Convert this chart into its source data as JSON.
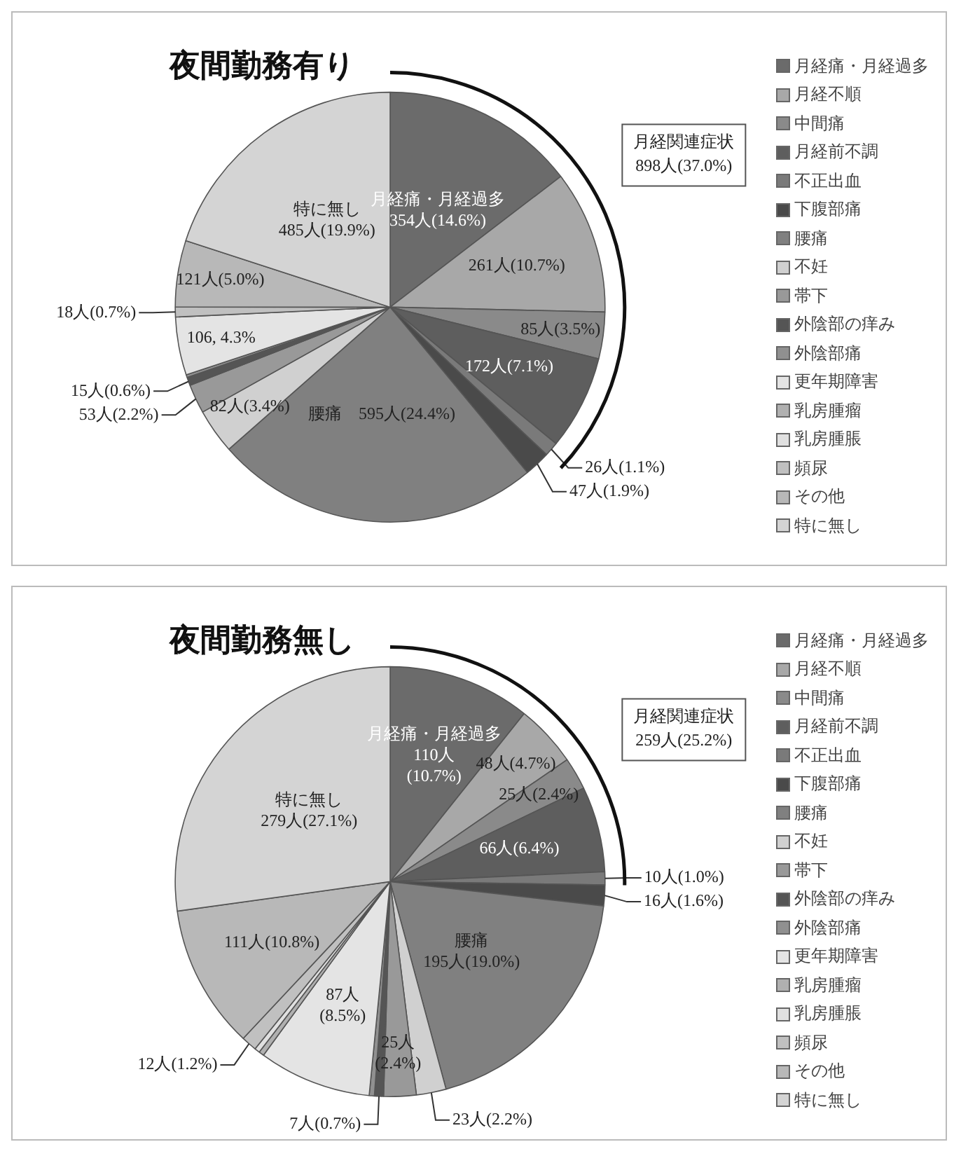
{
  "chart_data": [
    {
      "type": "pie",
      "title": "夜間勤務有り",
      "categories": [
        "月経痛・月経過多",
        "月経不順",
        "中間痛",
        "月経前不調",
        "不正出血",
        "下腹部痛",
        "腰痛",
        "不妊",
        "帯下",
        "外陰部の痒み",
        "外陰部痛",
        "更年期障害",
        "乳房腫瘤",
        "乳房腫脹",
        "頻尿",
        "その他",
        "特に無し"
      ],
      "values": [
        354,
        261,
        85,
        172,
        26,
        47,
        595,
        82,
        53,
        15,
        5,
        106,
        null,
        null,
        18,
        121,
        485
      ],
      "colors": [
        "#6b6b6b",
        "#a8a8a8",
        "#8a8a8a",
        "#5e5e5e",
        "#7a7a7a",
        "#4a4a4a",
        "#808080",
        "#d0d0d0",
        "#999999",
        "#555555",
        "#909090",
        "#e4e4e4",
        "#b0b0b0",
        "#e0e0e0",
        "#c0c0c0",
        "#b8b8b8",
        "#d4d4d4"
      ],
      "value_labels": [
        "月経痛・月経過多\n354人(14.6%)",
        "261人(10.7%)",
        "85人(3.5%)",
        "172人(7.1%)",
        "26人(1.1%)",
        "47人(1.9%)",
        "腰痛　595人(24.4%)",
        "82人(3.4%)",
        "53人(2.2%)",
        "15人(0.6%)",
        null,
        "106, 4.3%",
        null,
        null,
        "18人(0.7%)",
        "121人(5.0%)",
        "特に無し\n485人(19.9%)"
      ],
      "annotations": [
        {
          "text": "月経関連症状\n898人(37.0%)",
          "x": "不正出血"
        }
      ],
      "legend": "right"
    },
    {
      "type": "pie",
      "title": "夜間勤務無し",
      "categories": [
        "月経痛・月経過多",
        "月経不順",
        "中間痛",
        "月経前不調",
        "不正出血",
        "下腹部痛",
        "腰痛",
        "不妊",
        "帯下",
        "外陰部の痒み",
        "外陰部痛",
        "更年期障害",
        "乳房腫瘤",
        "乳房腫脹",
        "頻尿",
        "その他",
        "特に無し"
      ],
      "values": [
        110,
        48,
        25,
        66,
        10,
        16,
        195,
        23,
        25,
        7,
        4,
        87,
        4,
        4,
        12,
        111,
        279
      ],
      "colors": [
        "#6b6b6b",
        "#a8a8a8",
        "#8a8a8a",
        "#5e5e5e",
        "#7a7a7a",
        "#4a4a4a",
        "#808080",
        "#d0d0d0",
        "#999999",
        "#555555",
        "#909090",
        "#e4e4e4",
        "#b0b0b0",
        "#e0e0e0",
        "#c0c0c0",
        "#b8b8b8",
        "#d4d4d4"
      ],
      "value_labels": [
        "月経痛・月経過多\n110人\n(10.7%)",
        "48人(4.7%)",
        "25人(2.4%)",
        "66人(6.4%)",
        "10人(1.0%)",
        "16人(1.6%)",
        "腰痛\n195人(19.0%)",
        "23人(2.2%)",
        "25人\n(2.4%)",
        "7人(0.7%)",
        null,
        "87人\n(8.5%)",
        null,
        null,
        "12人(1.2%)",
        "111人(10.8%)",
        "特に無し\n279人(27.1%)"
      ],
      "annotations": [
        {
          "text": "月経関連症状\n259人(25.2%)",
          "x": "不正出血"
        }
      ],
      "legend": "right"
    }
  ]
}
